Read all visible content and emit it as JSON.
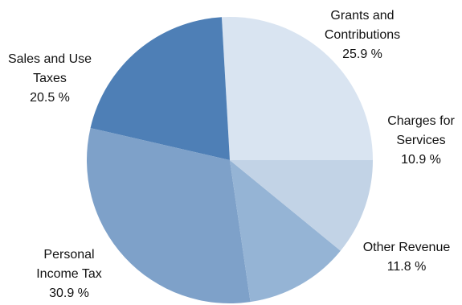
{
  "chart_data": {
    "type": "pie",
    "title": "",
    "legend": "none",
    "start_angle_deg": 0,
    "direction": "counterclockwise",
    "slices": [
      {
        "label_lines": [
          "Grants and",
          "Contributions"
        ],
        "value": 25.9,
        "percent_label": "25.9 %",
        "color": "#D9E4F1"
      },
      {
        "label_lines": [
          "Sales and Use",
          "Taxes"
        ],
        "value": 20.5,
        "percent_label": "20.5 %",
        "color": "#4E7FB6"
      },
      {
        "label_lines": [
          "Personal",
          "Income Tax"
        ],
        "value": 30.9,
        "percent_label": "30.9 %",
        "color": "#7EA1C9"
      },
      {
        "label_lines": [
          "Other Revenue"
        ],
        "value": 11.8,
        "percent_label": "11.8 %",
        "color": "#95B4D5"
      },
      {
        "label_lines": [
          "Charges for",
          "Services"
        ],
        "value": 10.9,
        "percent_label": "10.9 %",
        "color": "#C2D3E6"
      }
    ]
  }
}
